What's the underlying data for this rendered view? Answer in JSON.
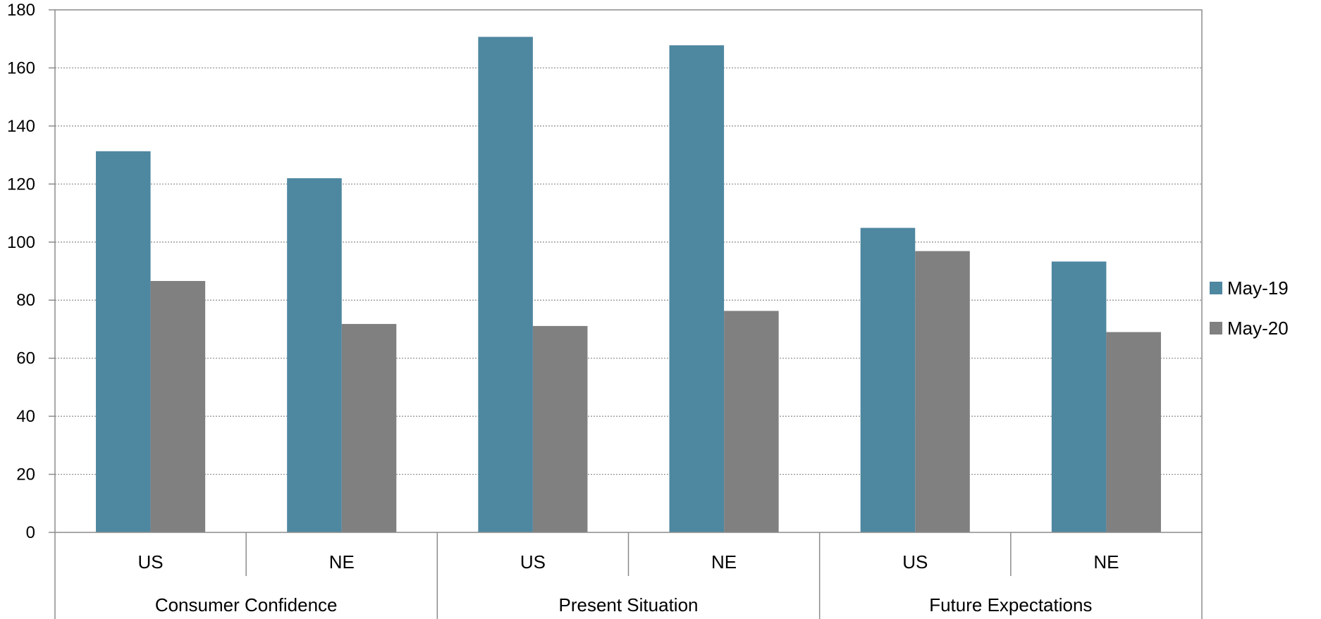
{
  "chart_data": {
    "type": "bar",
    "groups": [
      "Consumer Confidence",
      "Present Situation",
      "Future Expectations"
    ],
    "subcategories": [
      "US",
      "NE"
    ],
    "categories": [
      "Consumer Confidence US",
      "Consumer Confidence NE",
      "Present Situation US",
      "Present Situation NE",
      "Future Expectations US",
      "Future Expectations NE"
    ],
    "series": [
      {
        "name": "May-19",
        "color": "#4e87a0",
        "values": [
          131.3,
          122.0,
          170.7,
          167.8,
          104.9,
          93.3
        ]
      },
      {
        "name": "May-20",
        "color": "#808080",
        "values": [
          86.6,
          71.8,
          71.1,
          76.3,
          96.9,
          69.0
        ]
      }
    ],
    "ylim": [
      0,
      180
    ],
    "yticks": [
      0,
      20,
      40,
      60,
      80,
      100,
      120,
      140,
      160,
      180
    ],
    "grid": true,
    "legend_position": "right",
    "title": "",
    "xlabel": "",
    "ylabel": ""
  }
}
